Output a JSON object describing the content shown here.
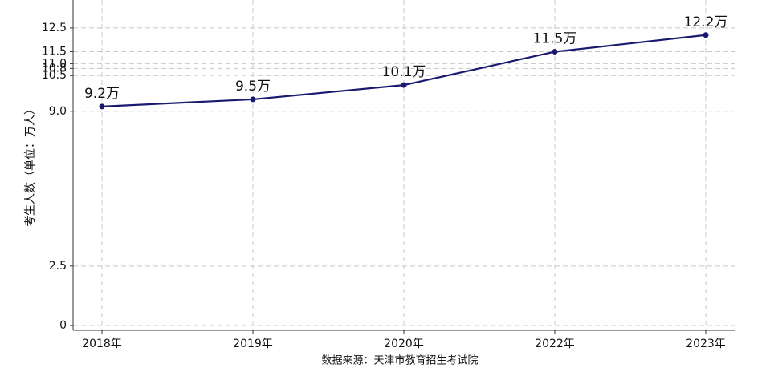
{
  "chart_data": {
    "type": "line",
    "y_label": "考生人数（单位：万人）",
    "source": "数据来源：天津市教育招生考试院",
    "categories": [
      "2018年",
      "2019年",
      "2020年",
      "2022年",
      "2023年"
    ],
    "series": [
      {
        "color": "#191970",
        "values": [
          9.2,
          9.5,
          10.1,
          11.5,
          12.2
        ],
        "value_labels": [
          "9.2万",
          "9.5万",
          "10.1万",
          "11.5万",
          "12.2万"
        ]
      }
    ],
    "ylim": [
      -0.2,
      13
    ],
    "yticks": [
      0,
      2.5,
      {
        "value": 9.0,
        "label": "9.0"
      },
      10.5,
      10.8,
      11.5,
      {
        "value": 11.0,
        "label": "11.0"
      },
      12.5
    ],
    "grid": true
  }
}
